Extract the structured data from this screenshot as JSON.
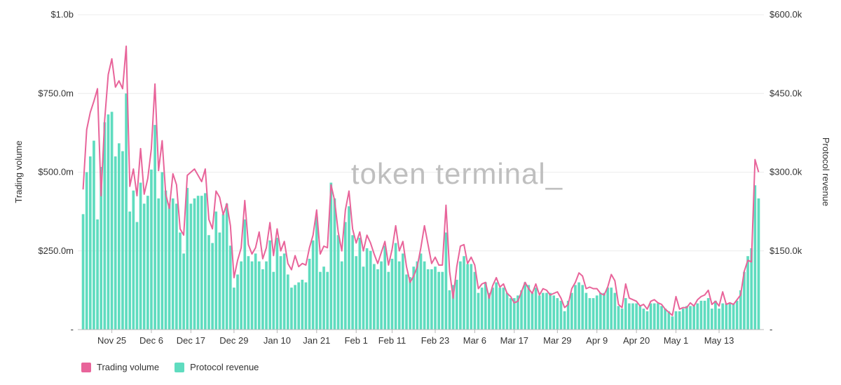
{
  "chart_data": {
    "type": "bar",
    "watermark": "token terminal_",
    "xlabel": "",
    "ylabel": "Trading volume",
    "y2label": "Protocol revenue",
    "ylim": [
      0,
      1000000000
    ],
    "y2lim": [
      0,
      600000
    ],
    "grid": true,
    "legend_position": "bottom-left",
    "y_ticks": [
      {
        "value": 0,
        "label": "-"
      },
      {
        "value": 250000000,
        "label": "$250.0m"
      },
      {
        "value": 500000000,
        "label": "$500.0m"
      },
      {
        "value": 750000000,
        "label": "$750.0m"
      },
      {
        "value": 1000000000,
        "label": "$1.0b"
      }
    ],
    "y2_ticks": [
      {
        "value": 0,
        "label": "-"
      },
      {
        "value": 150000,
        "label": "$150.0k"
      },
      {
        "value": 300000,
        "label": "$300.0k"
      },
      {
        "value": 450000,
        "label": "$450.0k"
      },
      {
        "value": 600000,
        "label": "$600.0k"
      }
    ],
    "x_ticks": [
      {
        "index": 8,
        "label": "Nov 25"
      },
      {
        "index": 19,
        "label": "Dec 6"
      },
      {
        "index": 30,
        "label": "Dec 17"
      },
      {
        "index": 42,
        "label": "Dec 29"
      },
      {
        "index": 54,
        "label": "Jan 10"
      },
      {
        "index": 65,
        "label": "Jan 21"
      },
      {
        "index": 76,
        "label": "Feb 1"
      },
      {
        "index": 86,
        "label": "Feb 11"
      },
      {
        "index": 98,
        "label": "Feb 23"
      },
      {
        "index": 109,
        "label": "Mar 6"
      },
      {
        "index": 120,
        "label": "Mar 17"
      },
      {
        "index": 132,
        "label": "Mar 29"
      },
      {
        "index": 143,
        "label": "Apr 9"
      },
      {
        "index": 154,
        "label": "Apr 20"
      },
      {
        "index": 165,
        "label": "May 1"
      },
      {
        "index": 177,
        "label": "May 13"
      }
    ],
    "series": [
      {
        "name": "Trading volume",
        "kind": "line",
        "axis": "left",
        "color": "#e8649a",
        "values": [
          445,
          635,
          690,
          725,
          765,
          425,
          665,
          810,
          860,
          770,
          790,
          765,
          900,
          455,
          510,
          425,
          575,
          430,
          480,
          575,
          780,
          505,
          600,
          430,
          385,
          495,
          460,
          320,
          300,
          490,
          500,
          510,
          490,
          470,
          510,
          350,
          320,
          440,
          420,
          365,
          400,
          330,
          165,
          220,
          260,
          410,
          270,
          240,
          260,
          310,
          225,
          260,
          340,
          235,
          320,
          250,
          280,
          210,
          190,
          235,
          200,
          210,
          205,
          260,
          300,
          380,
          240,
          265,
          260,
          460,
          410,
          310,
          250,
          380,
          440,
          320,
          275,
          310,
          250,
          300,
          275,
          240,
          210,
          245,
          280,
          205,
          255,
          330,
          250,
          280,
          200,
          150,
          170,
          200,
          260,
          330,
          270,
          210,
          230,
          205,
          205,
          395,
          185,
          100,
          200,
          265,
          270,
          210,
          230,
          205,
          130,
          145,
          150,
          100,
          140,
          165,
          135,
          145,
          115,
          105,
          85,
          90,
          120,
          150,
          130,
          115,
          145,
          110,
          130,
          125,
          110,
          115,
          120,
          100,
          70,
          80,
          130,
          150,
          180,
          170,
          130,
          135,
          130,
          130,
          115,
          110,
          135,
          175,
          155,
          80,
          70,
          145,
          100,
          95,
          90,
          75,
          80,
          65,
          90,
          95,
          85,
          80,
          65,
          55,
          45,
          105,
          65,
          70,
          70,
          85,
          75,
          95,
          105,
          110,
          125,
          80,
          90,
          75,
          120,
          80,
          85,
          80,
          95,
          110,
          185,
          220,
          215,
          540,
          500
        ]
      },
      {
        "name": "Protocol revenue",
        "kind": "bar",
        "axis": "right",
        "color": "#5fdcbf",
        "values": [
          220,
          300,
          330,
          360,
          210,
          310,
          395,
          410,
          415,
          330,
          355,
          340,
          450,
          225,
          265,
          205,
          280,
          240,
          255,
          305,
          390,
          250,
          300,
          265,
          240,
          250,
          240,
          185,
          145,
          270,
          240,
          250,
          255,
          255,
          260,
          180,
          165,
          225,
          185,
          220,
          240,
          160,
          80,
          105,
          130,
          210,
          140,
          130,
          145,
          130,
          115,
          130,
          170,
          110,
          175,
          140,
          145,
          105,
          80,
          85,
          90,
          95,
          90,
          135,
          170,
          215,
          110,
          120,
          110,
          280,
          250,
          180,
          130,
          205,
          235,
          180,
          140,
          175,
          120,
          155,
          150,
          125,
          115,
          130,
          160,
          110,
          135,
          165,
          130,
          145,
          105,
          100,
          120,
          130,
          145,
          130,
          115,
          115,
          120,
          110,
          110,
          185,
          75,
          85,
          95,
          130,
          140,
          125,
          125,
          110,
          70,
          80,
          90,
          70,
          80,
          90,
          80,
          80,
          70,
          60,
          60,
          65,
          75,
          90,
          85,
          70,
          80,
          65,
          70,
          70,
          70,
          65,
          60,
          55,
          35,
          55,
          70,
          85,
          90,
          85,
          70,
          60,
          60,
          65,
          70,
          70,
          80,
          80,
          70,
          45,
          40,
          60,
          50,
          50,
          50,
          45,
          40,
          35,
          50,
          50,
          50,
          45,
          40,
          35,
          25,
          35,
          35,
          40,
          45,
          45,
          45,
          50,
          55,
          55,
          60,
          40,
          55,
          40,
          50,
          50,
          50,
          50,
          55,
          75,
          110,
          140,
          155,
          275,
          250
        ]
      }
    ]
  }
}
